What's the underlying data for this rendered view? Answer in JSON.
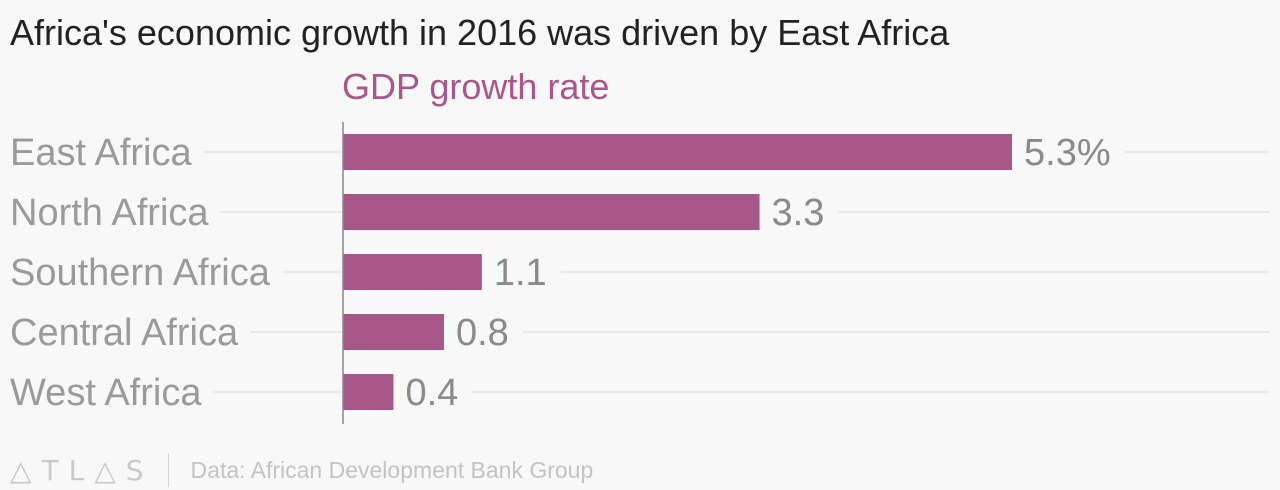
{
  "title": "Africa's economic growth in 2016 was driven by East Africa",
  "subtitle": "GDP growth rate",
  "footer": {
    "logo": "△TL△S",
    "source": "Data: African Development Bank Group"
  },
  "colors": {
    "bar": "#a85789",
    "subtitle": "#a85789",
    "category_label": "#9a9a9a",
    "value_label": "#8a8a8a",
    "gridline": "#e4e4e4",
    "axis": "#888888"
  },
  "chart_data": {
    "type": "bar",
    "orientation": "horizontal",
    "title": "Africa's economic growth in 2016 was driven by East Africa",
    "subtitle": "GDP growth rate",
    "categories": [
      "East Africa",
      "North Africa",
      "Southern Africa",
      "Central Africa",
      "West Africa"
    ],
    "values": [
      5.3,
      3.3,
      1.1,
      0.8,
      0.4
    ],
    "value_labels": [
      "5.3%",
      "3.3",
      "1.1",
      "0.8",
      "0.4"
    ],
    "xlim": [
      0,
      5.3
    ],
    "grid": true,
    "legend": "none"
  }
}
